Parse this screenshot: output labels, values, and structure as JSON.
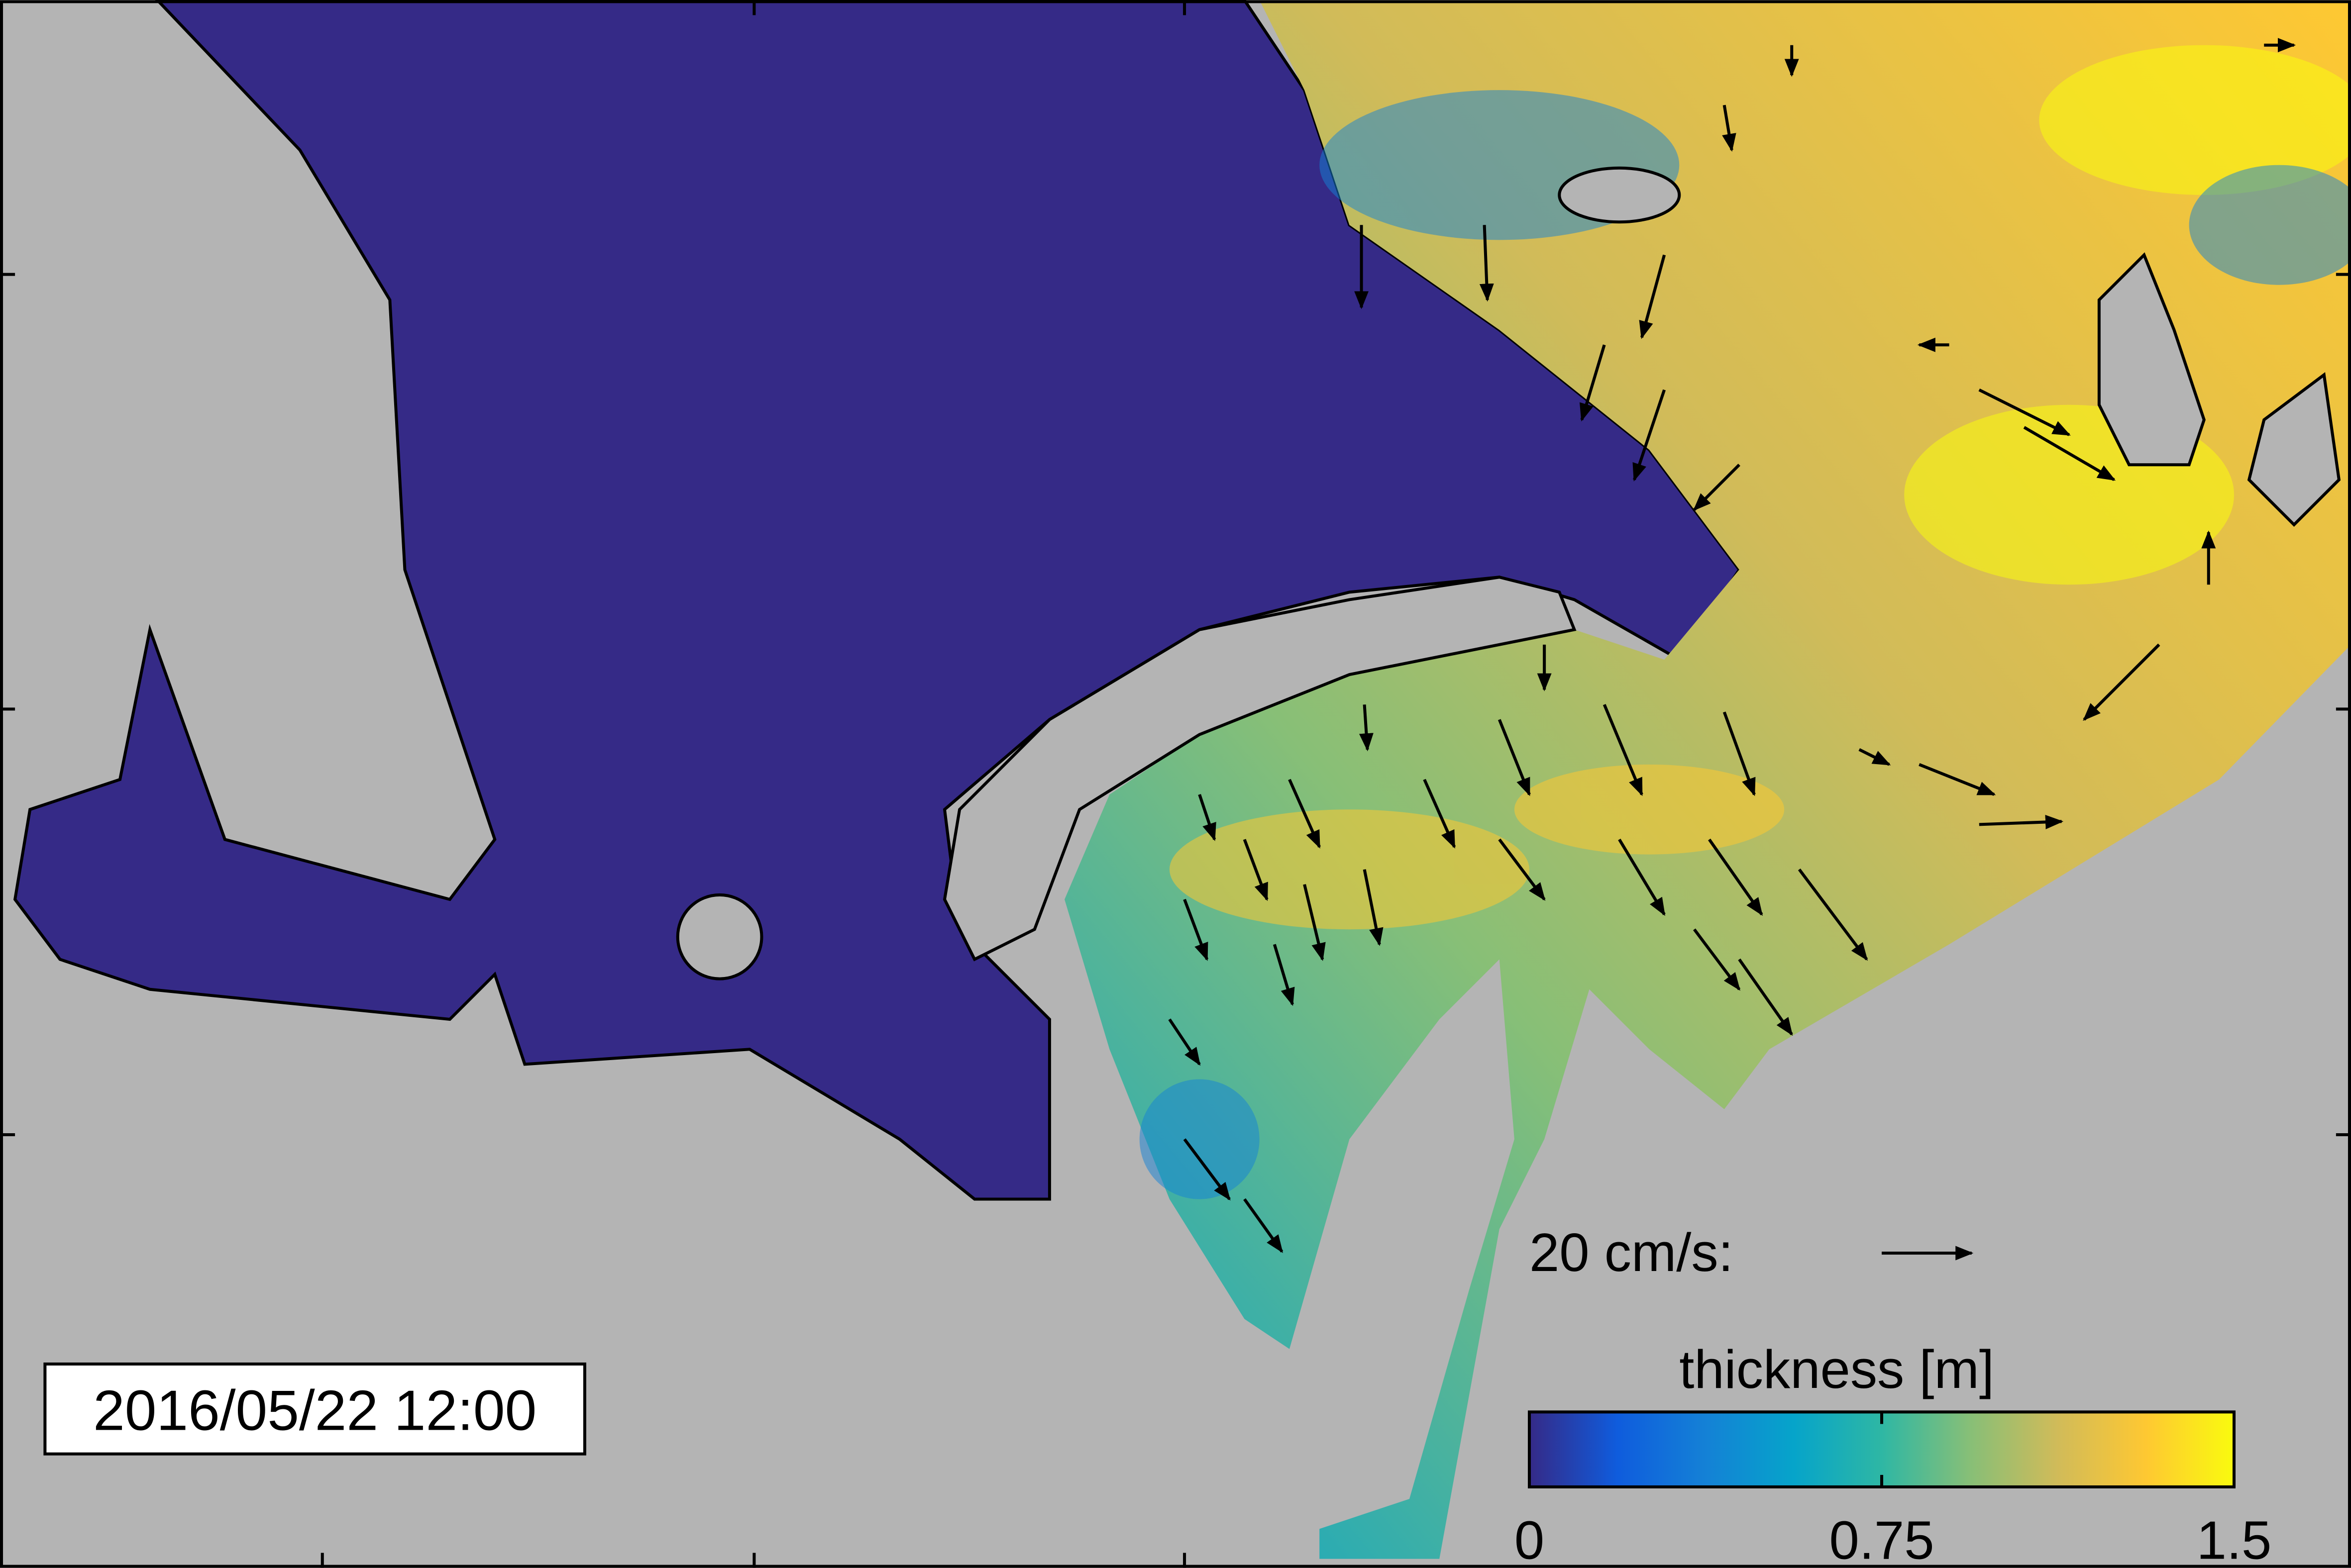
{
  "timestamp": "2016/05/22 12:00",
  "scale_label": "20 cm/s:",
  "colorbar": {
    "label": "thickness [m]",
    "lim": [
      0,
      1.5
    ],
    "ticks": [
      0,
      0.75,
      1.5
    ],
    "colormap": [
      "#352a87",
      "#0f5cdd",
      "#1481d6",
      "#06a4ca",
      "#2eb7a4",
      "#87bf77",
      "#d1bb59",
      "#fec832",
      "#f9fb0e"
    ]
  }
}
